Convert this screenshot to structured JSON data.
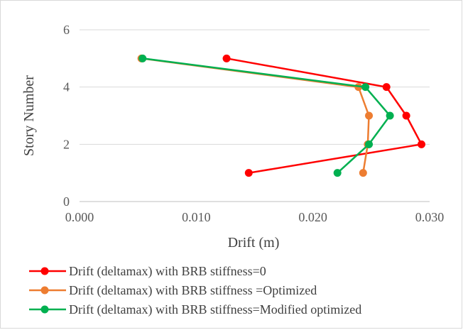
{
  "chart_data": {
    "type": "line",
    "title": "",
    "xlabel": "Drift (m)",
    "ylabel": "Story Number",
    "xlim": [
      0,
      0.03
    ],
    "ylim": [
      0,
      6
    ],
    "x_ticks": [
      "0.000",
      "0.010",
      "0.020",
      "0.030"
    ],
    "y_ticks": [
      "0",
      "2",
      "4",
      "6"
    ],
    "grid": "horizontal",
    "legend_position": "bottom",
    "series": [
      {
        "name": "Drift (deltamax) with BRB stiffness=0",
        "color": "#ff0000",
        "points": [
          {
            "x": 0.0145,
            "y": 1
          },
          {
            "x": 0.0293,
            "y": 2
          },
          {
            "x": 0.028,
            "y": 3
          },
          {
            "x": 0.0263,
            "y": 4
          },
          {
            "x": 0.0126,
            "y": 5
          }
        ]
      },
      {
        "name": "Drift (deltamax) with BRB stiffness =Optimized",
        "color": "#ed7d31",
        "points": [
          {
            "x": 0.0243,
            "y": 1
          },
          {
            "x": 0.0247,
            "y": 2
          },
          {
            "x": 0.0248,
            "y": 3
          },
          {
            "x": 0.0239,
            "y": 4
          },
          {
            "x": 0.0053,
            "y": 5
          }
        ]
      },
      {
        "name": "Drift (deltamax) with BRB stiffness=Modified optimized",
        "color": "#00b050",
        "points": [
          {
            "x": 0.0221,
            "y": 1
          },
          {
            "x": 0.0248,
            "y": 2
          },
          {
            "x": 0.0266,
            "y": 3
          },
          {
            "x": 0.0245,
            "y": 4
          },
          {
            "x": 0.0054,
            "y": 5
          }
        ]
      }
    ]
  }
}
